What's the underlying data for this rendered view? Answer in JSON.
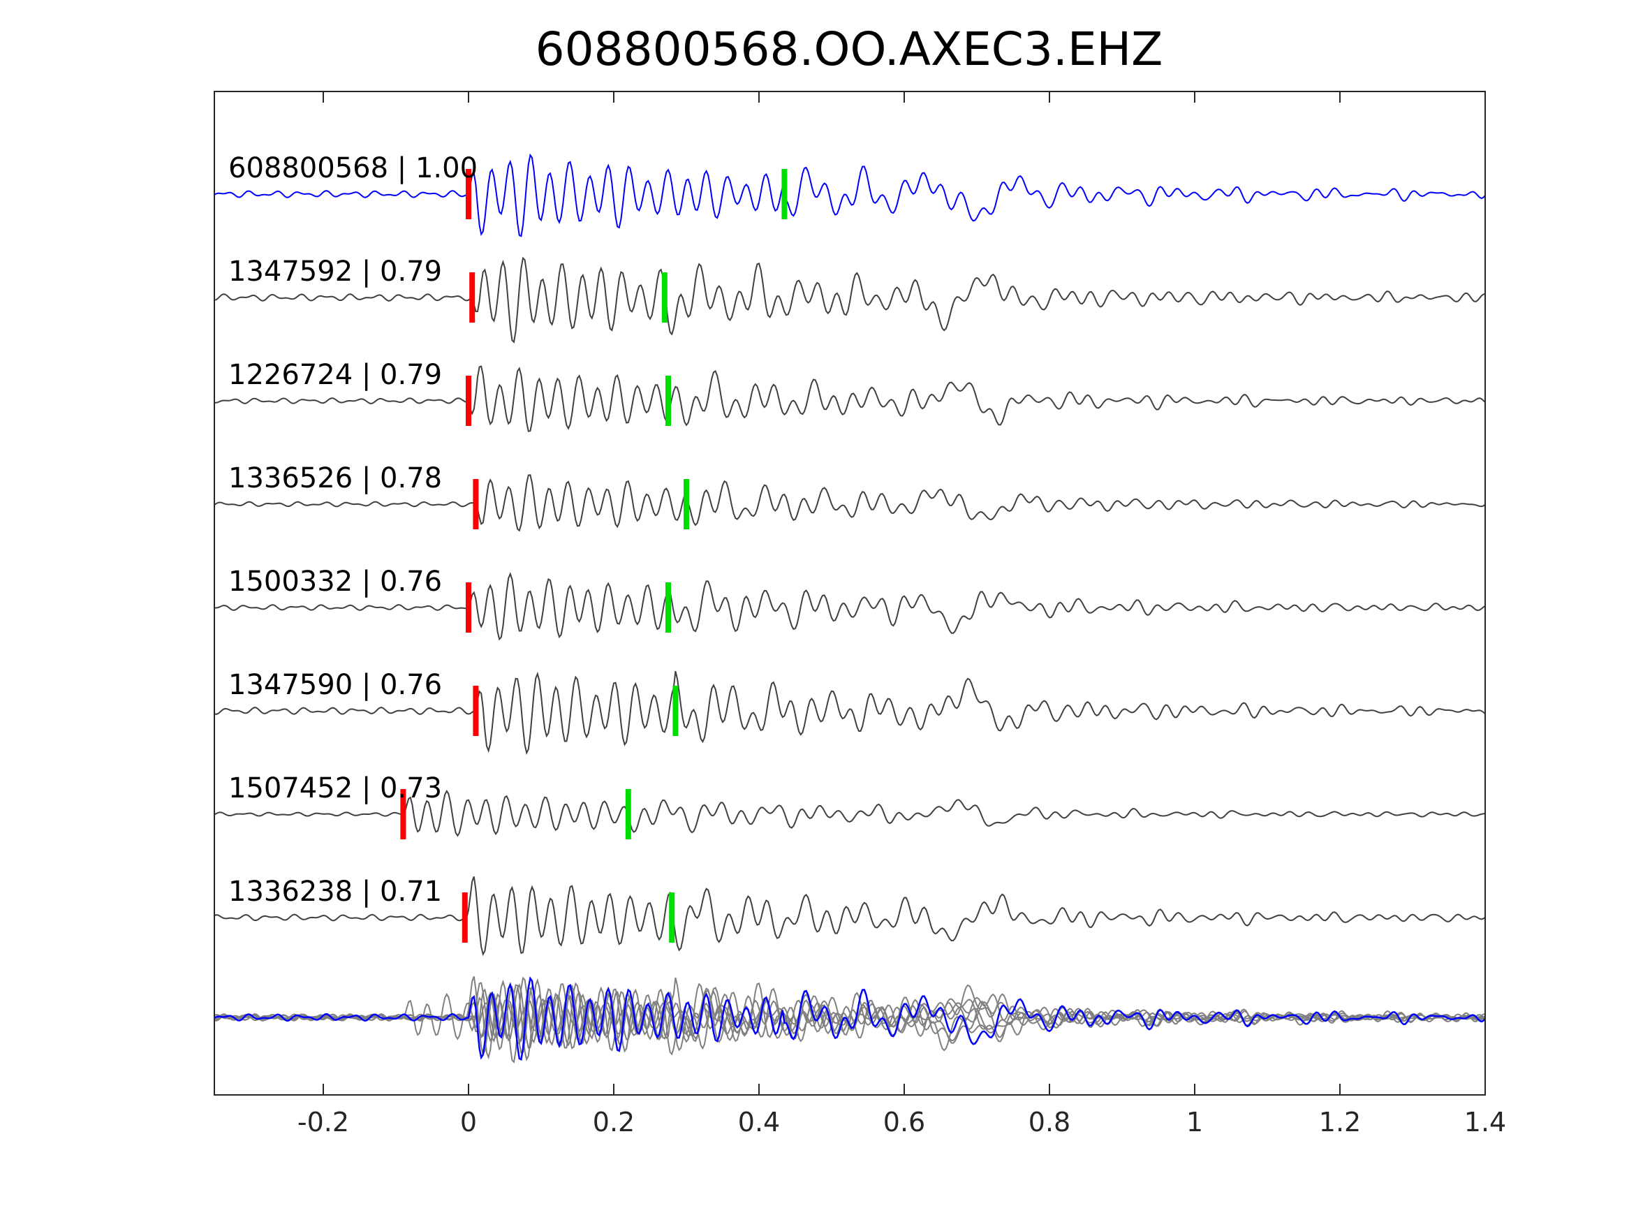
{
  "chart_data": {
    "type": "line",
    "title": "608800568.OO.AXEC3.EHZ",
    "xlabel": "",
    "ylabel": "",
    "xlim": [
      -0.35,
      1.4
    ],
    "x_ticks": [
      -0.2,
      0,
      0.2,
      0.4,
      0.6,
      0.8,
      1,
      1.2,
      1.4
    ],
    "x_tick_labels": [
      "-0.2",
      "0",
      "0.2",
      "0.4",
      "0.6",
      "0.8",
      "1",
      "1.2",
      "1.4"
    ],
    "grid": false,
    "legend": "none",
    "colors": {
      "master": "#0000ff",
      "trace": "#404040",
      "overlay": "#808080",
      "p_pick": "#ff0000",
      "s_pick": "#00dd00",
      "axis": "#262626"
    },
    "traces": [
      {
        "label": "608800568 | 1.00",
        "id": "608800568",
        "cc": 1.0,
        "p_pick": 0.0,
        "s_pick": 0.435,
        "onset": 0.0,
        "amplitude": 1.0,
        "seed": 11,
        "master": true
      },
      {
        "label": "1347592 | 0.79",
        "id": "1347592",
        "cc": 0.79,
        "p_pick": 0.005,
        "s_pick": 0.27,
        "onset": 0.005,
        "amplitude": 1.0,
        "seed": 23,
        "master": false
      },
      {
        "label": "1226724 | 0.79",
        "id": "1226724",
        "cc": 0.79,
        "p_pick": 0.0,
        "s_pick": 0.275,
        "onset": 0.0,
        "amplitude": 0.8,
        "seed": 37,
        "master": false
      },
      {
        "label": "1336526 | 0.78",
        "id": "1336526",
        "cc": 0.78,
        "p_pick": 0.01,
        "s_pick": 0.3,
        "onset": 0.01,
        "amplitude": 0.7,
        "seed": 41,
        "master": false
      },
      {
        "label": "1500332 | 0.76",
        "id": "1500332",
        "cc": 0.76,
        "p_pick": 0.0,
        "s_pick": 0.275,
        "onset": 0.0,
        "amplitude": 0.8,
        "seed": 53,
        "master": false
      },
      {
        "label": "1347590 | 0.76",
        "id": "1347590",
        "cc": 0.76,
        "p_pick": 0.01,
        "s_pick": 0.285,
        "onset": 0.01,
        "amplitude": 1.0,
        "seed": 67,
        "master": false
      },
      {
        "label": "1507452 | 0.73",
        "id": "1507452",
        "cc": 0.73,
        "p_pick": -0.09,
        "s_pick": 0.22,
        "onset": -0.09,
        "amplitude": 0.55,
        "seed": 71,
        "master": false
      },
      {
        "label": "1336238 | 0.71",
        "id": "1336238",
        "cc": 0.71,
        "p_pick": -0.005,
        "s_pick": 0.28,
        "onset": -0.005,
        "amplitude": 0.9,
        "seed": 89,
        "master": false
      }
    ]
  }
}
